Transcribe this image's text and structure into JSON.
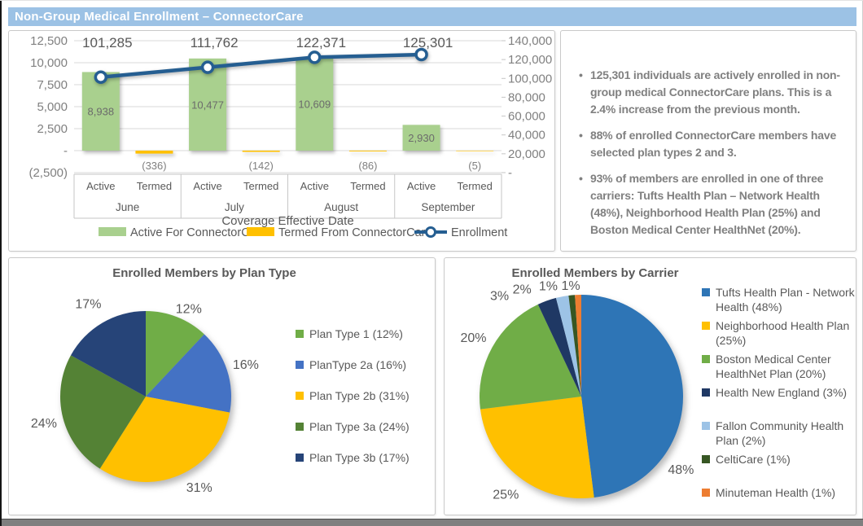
{
  "page": {
    "title": "Non-Group Medical Enrollment – ConnectorCare"
  },
  "insights": {
    "bullets": [
      "125,301 individuals are actively enrolled in non-group medical ConnectorCare plans. This is a 2.4% increase from the previous month.",
      "88% of enrolled ConnectorCare members have selected plan types 2 and 3.",
      "93% of members are enrolled in one of three carriers: Tufts Health Plan – Network Health (48%), Neighborhood Health Plan (25%) and Boston Medical Center HealthNet (20%)."
    ]
  },
  "chart_data": [
    {
      "type": "bar",
      "subtype": "bar-line-combo",
      "title": "",
      "xlabel": "Coverage Effective Date",
      "categories": [
        "June",
        "July",
        "August",
        "September"
      ],
      "sub_categories": [
        "Active",
        "Termed"
      ],
      "series": [
        {
          "name": "Active For ConnectorCare",
          "chart": "bar",
          "axis": "left",
          "color": "#A9D08E",
          "values": [
            8938,
            10477,
            10609,
            2930
          ],
          "value_labels": [
            "8,938",
            "10,477",
            "10,609",
            "2,930"
          ]
        },
        {
          "name": "Termed From ConnectorCare",
          "chart": "bar",
          "axis": "left",
          "color": "#FFC000",
          "values": [
            -336,
            -142,
            -86,
            -5
          ],
          "value_labels": [
            "(336)",
            "(142)",
            "(86)",
            "(5)"
          ]
        },
        {
          "name": "Enrollment",
          "chart": "line",
          "axis": "right",
          "color": "#255E91",
          "values": [
            101285,
            111762,
            122371,
            125301
          ],
          "value_labels": [
            "101,285",
            "111,762",
            "122,371",
            "125,301"
          ]
        }
      ],
      "left_axis": {
        "min": -2500,
        "max": 12500,
        "step": 2500,
        "tick_labels": [
          "12,500",
          "10,000",
          "7,500",
          "5,000",
          "2,500",
          "-",
          "(2,500)"
        ]
      },
      "right_axis": {
        "min": 0,
        "max": 140000,
        "step": 20000,
        "tick_labels": [
          "140,000",
          "120,000",
          "100,000",
          "80,000",
          "60,000",
          "40,000",
          "20,000",
          "-"
        ]
      },
      "grid": true,
      "legend_position": "bottom"
    },
    {
      "type": "pie",
      "title": "Enrolled Members by Plan Type",
      "legend_position": "right",
      "slices": [
        {
          "legend_label": "Plan Type 1 (12%)",
          "pct_label": "12%",
          "value": 12,
          "color": "#70AD47"
        },
        {
          "legend_label": "PlanType 2a (16%)",
          "pct_label": "16%",
          "value": 16,
          "color": "#4472C4"
        },
        {
          "legend_label": "Plan Type 2b (31%)",
          "pct_label": "31%",
          "value": 31,
          "color": "#FFC000"
        },
        {
          "legend_label": "Plan Type 3a (24%)",
          "pct_label": "24%",
          "value": 24,
          "color": "#548235"
        },
        {
          "legend_label": "Plan Type 3b (17%)",
          "pct_label": "17%",
          "value": 17,
          "color": "#264478"
        }
      ]
    },
    {
      "type": "pie",
      "title": "Enrolled Members by Carrier",
      "legend_position": "right",
      "slices": [
        {
          "legend_label": "Tufts Health Plan - Network Health (48%)",
          "pct_label": "48%",
          "value": 48,
          "color": "#2E75B6"
        },
        {
          "legend_label": "Neighborhood Health Plan (25%)",
          "pct_label": "25%",
          "value": 25,
          "color": "#FFC000"
        },
        {
          "legend_label": "Boston Medical Center HealthNet Plan (20%)",
          "pct_label": "20%",
          "value": 20,
          "color": "#70AD47"
        },
        {
          "legend_label": "Health New England (3%)",
          "pct_label": "3%",
          "value": 3,
          "color": "#1F3864"
        },
        {
          "legend_label": "Fallon Community Health Plan (2%)",
          "pct_label": "2%",
          "value": 2,
          "color": "#9DC3E6"
        },
        {
          "legend_label": "CeltiCare (1%)",
          "pct_label": "1%",
          "value": 1,
          "color": "#375623"
        },
        {
          "legend_label": "Minuteman Health (1%)",
          "pct_label": "1%",
          "value": 1,
          "color": "#ED7D31"
        }
      ]
    }
  ]
}
